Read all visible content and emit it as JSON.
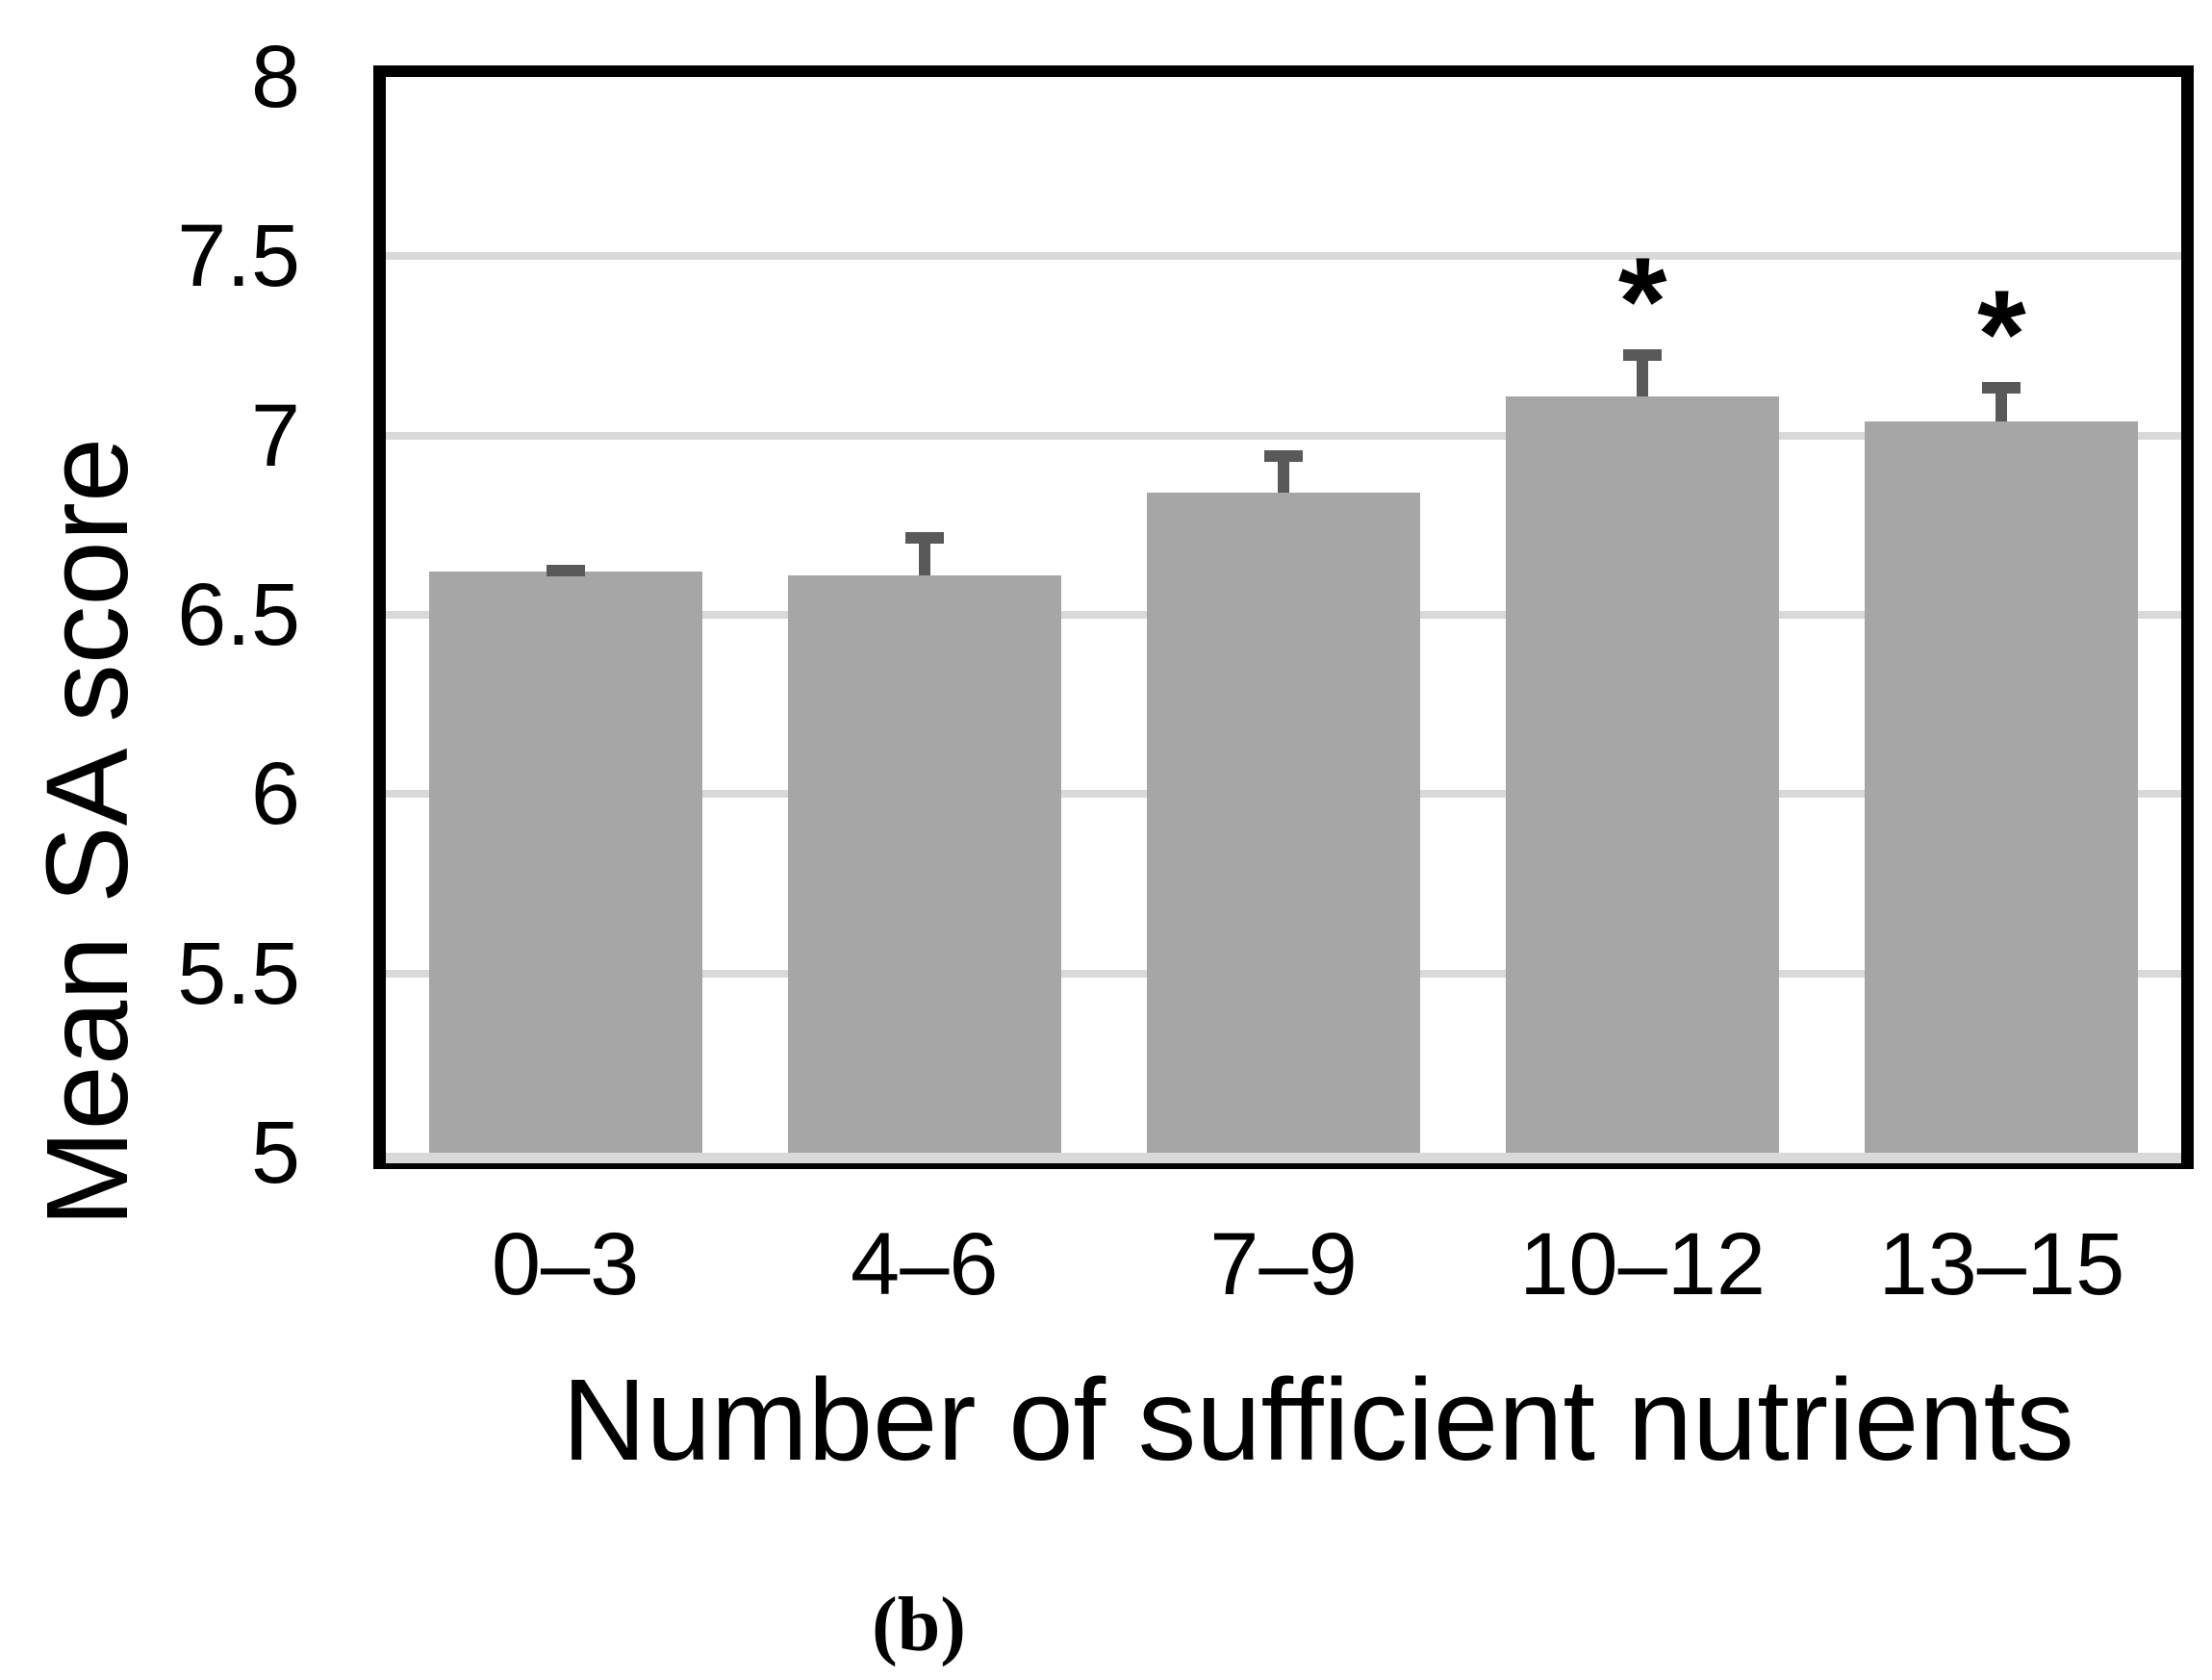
{
  "chart_data": {
    "type": "bar",
    "title": "",
    "xlabel": "Number of sufficient nutrients",
    "ylabel": "Mean SA score",
    "categories": [
      "0–3",
      "4–6",
      "7–9",
      "10–12",
      "13–15"
    ],
    "values": [
      6.62,
      6.61,
      6.84,
      7.11,
      7.04
    ],
    "error_upper": [
      0.02,
      0.12,
      0.12,
      0.13,
      0.11
    ],
    "significance": [
      "",
      "",
      "",
      "*",
      "*"
    ],
    "ylim": [
      5,
      8
    ],
    "yticks": [
      5,
      5.5,
      6,
      6.5,
      7,
      7.5,
      8
    ],
    "ytick_labels": [
      "5",
      "5.5",
      "6",
      "6.5",
      "7",
      "7.5",
      "8"
    ],
    "gridlines_at": [
      5.5,
      6,
      6.5,
      7,
      7.5
    ],
    "grid": true,
    "legend": false,
    "bar_color": "#a6a6a6",
    "error_color": "#595959",
    "grid_color": "#d9d9d9",
    "floor_color": "#d9d9d9",
    "axis_color": "#000000"
  },
  "caption": "(b)"
}
